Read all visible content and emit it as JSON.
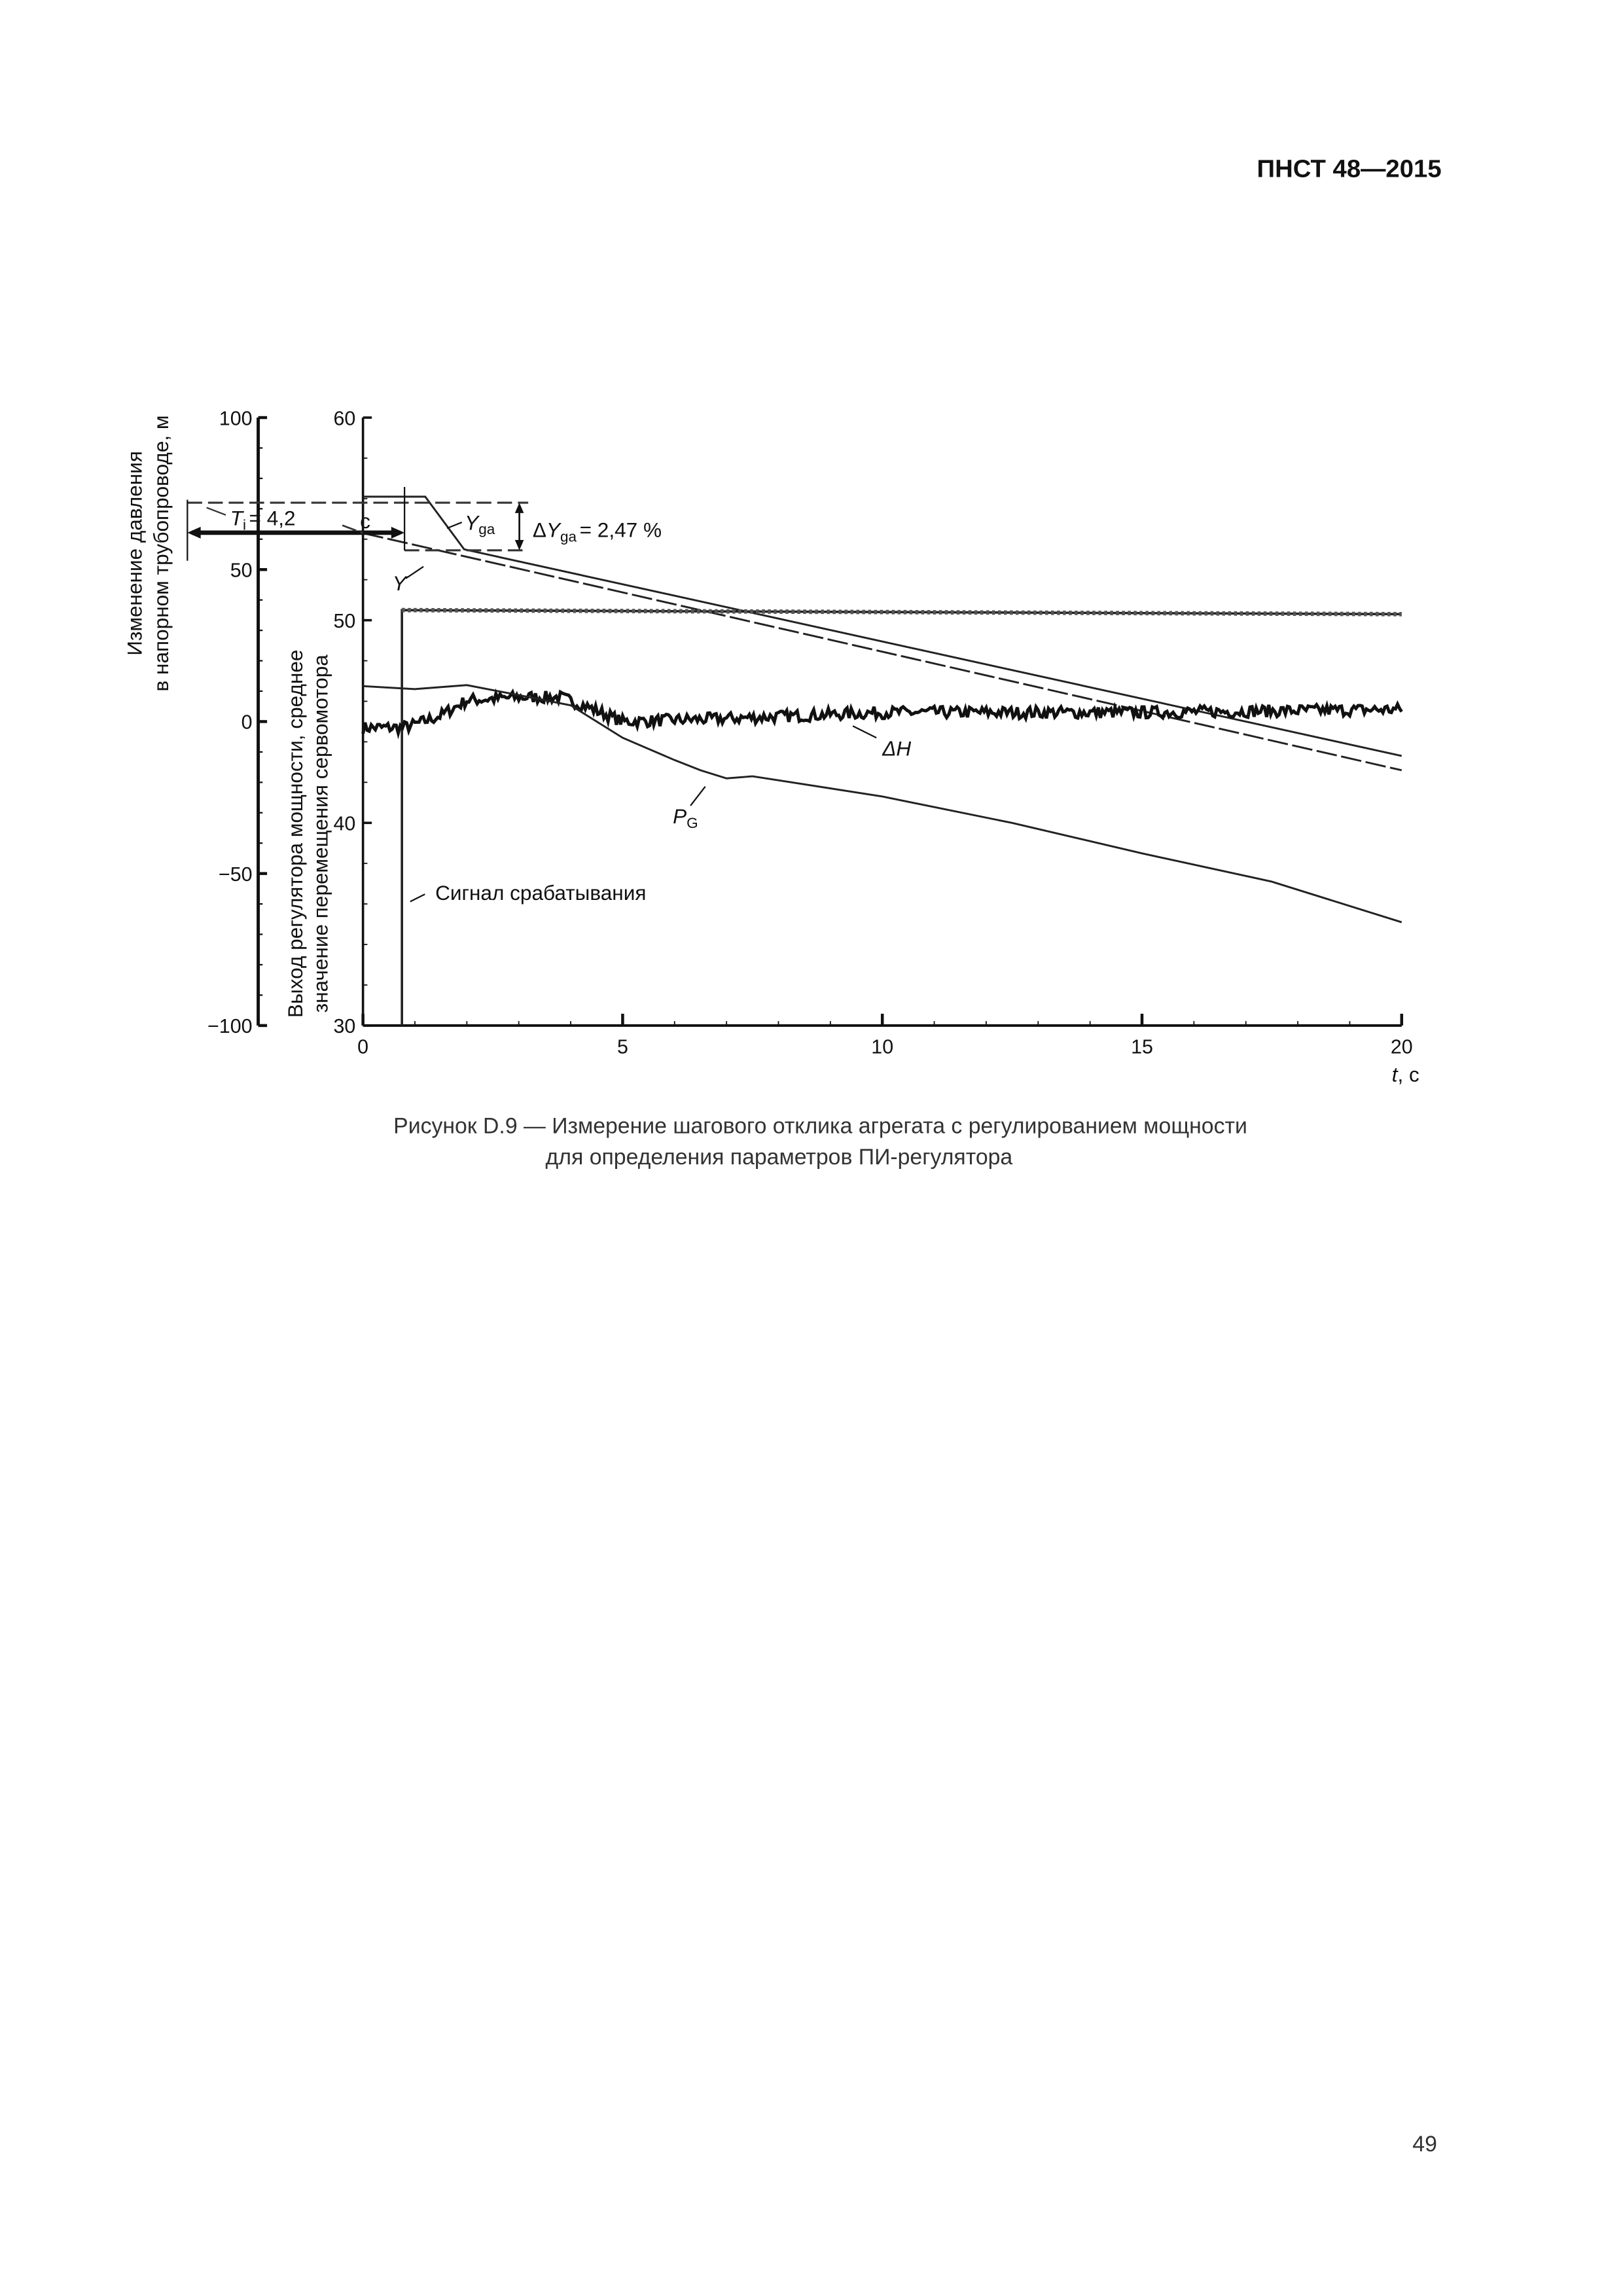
{
  "header": {
    "doc_number": "ПНСТ 48—2015"
  },
  "footer": {
    "page_number": "49"
  },
  "caption": {
    "line1": "Рисунок D.9 — Измерение шагового отклика агрегата с регулированием мощности",
    "line2": "для определения параметров ПИ-регулятора"
  },
  "chart_data": {
    "type": "line",
    "xlabel": {
      "var": "t",
      "unit": ", с"
    },
    "xlim": [
      0,
      20
    ],
    "x_ticks": [
      "0",
      "5",
      "10",
      "15",
      "20"
    ],
    "left_axis": {
      "label_line1": "Изменение давления",
      "label_line2": "в напорном трубопроводе, м",
      "ylim": [
        -100,
        100
      ],
      "ticks": [
        "100",
        "50",
        "0",
        "−50",
        "−100"
      ]
    },
    "right_axis": {
      "label_line1": "Выход регулятора мощности, среднее",
      "label_line2": "значение перемещения сервомотора",
      "ylim": [
        30,
        60
      ],
      "ticks": [
        "60",
        "50",
        "40",
        "30"
      ]
    },
    "series": [
      {
        "name": "Y",
        "axis": "right",
        "style": "solid",
        "x": [
          0,
          1.2,
          1.95,
          20
        ],
        "y": [
          56.1,
          56.1,
          53.5,
          43.3
        ]
      },
      {
        "name": "Y",
        "axis": "right",
        "style": "dashed",
        "x": [
          0,
          20
        ],
        "y": [
          54.3,
          42.6
        ]
      },
      {
        "name": "Сигнал срабатывания",
        "axis": "right",
        "style": "step",
        "x": [
          0.75,
          0.75,
          20
        ],
        "y": [
          30,
          50.5,
          50.3
        ]
      },
      {
        "name": "ΔH",
        "axis": "left",
        "style": "noisy",
        "x": [
          0,
          0.75,
          1,
          1.5,
          2,
          3,
          3.8,
          4.3,
          5,
          7,
          10,
          15,
          20
        ],
        "y": [
          -2,
          -2,
          -1,
          2,
          7,
          8,
          8,
          5,
          0,
          1,
          3,
          3,
          4
        ]
      },
      {
        "name": "P_G",
        "axis": "right",
        "style": "solid",
        "x": [
          0,
          1,
          2,
          3,
          4,
          5,
          6,
          6.5,
          7,
          7.5,
          8,
          10,
          12.5,
          15,
          17.5,
          20
        ],
        "y": [
          46.75,
          46.6,
          46.8,
          46.3,
          45.8,
          44.2,
          43.1,
          42.6,
          42.2,
          42.3,
          42.1,
          41.3,
          40,
          38.5,
          37.1,
          35.1
        ]
      }
    ],
    "annotations": {
      "ti_label": "= 4,2",
      "ti_var": "T",
      "ti_sub": "i",
      "ti_unit": "с",
      "dyga_prefix": "Δ",
      "dyga_var": "Y",
      "dyga_sub": "ga",
      "dyga_value": "= 2,47 %",
      "yga_var": "Y",
      "yga_sub": "ga",
      "y_label": "Y",
      "dh_label": "ΔH",
      "pg_var": "P",
      "pg_sub": "G",
      "signal_label": "Сигнал срабатывания",
      "ti_value_s": 4.2,
      "dyga_value_pct": 2.47,
      "y_upper_level": 55.8,
      "y_lower_level": 53.45
    },
    "grid": false
  }
}
